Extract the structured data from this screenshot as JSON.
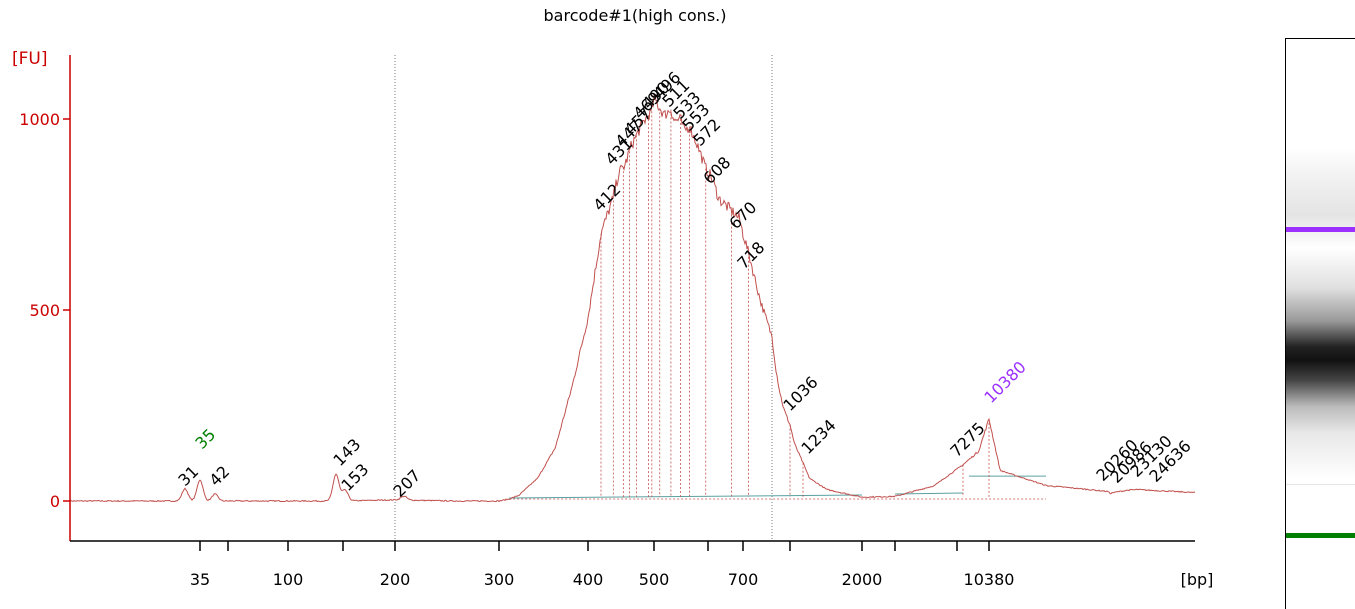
{
  "chart_data": {
    "type": "line",
    "title": "barcode#1(high cons.)",
    "ylabel": "[FU]",
    "xlabel": "[bp]",
    "ylim": [
      -110,
      1160
    ],
    "y_ticks": [
      0,
      500,
      1000
    ],
    "x_tick_labels": [
      "35",
      "100",
      "200",
      "300",
      "400",
      "500",
      "700",
      "2000",
      "10380"
    ],
    "series": [
      {
        "x": [
          35,
          100,
          150,
          200,
          250,
          300,
          310,
          320,
          340,
          360,
          380,
          400,
          412,
          430,
          440,
          450,
          460,
          470,
          480,
          490,
          496,
          500,
          510,
          520,
          533,
          540,
          553,
          560,
          572,
          590,
          608,
          620,
          640,
          660,
          670,
          690,
          700,
          718,
          740,
          760,
          800,
          850,
          900,
          950,
          1000,
          1036,
          1100,
          1234,
          1300,
          1500,
          2000,
          3000,
          5000,
          7275,
          9000,
          10380,
          11000,
          14000,
          17000,
          20000,
          20260,
          21000,
          22000,
          23130,
          24636,
          28000
        ],
        "y": [
          0,
          0,
          0,
          3,
          0,
          0,
          5,
          15,
          60,
          140,
          300,
          480,
          700,
          790,
          860,
          880,
          930,
          960,
          990,
          1010,
          1020,
          1055,
          1030,
          1010,
          1025,
          995,
          1000,
          970,
          980,
          930,
          870,
          850,
          790,
          770,
          760,
          740,
          700,
          650,
          580,
          520,
          430,
          340,
          280,
          240,
          215,
          200,
          150,
          100,
          60,
          30,
          10,
          12,
          40,
          95,
          130,
          215,
          80,
          40,
          32,
          25,
          20,
          24,
          28,
          30,
          28,
          22
        ]
      }
    ],
    "peaks": [
      "31",
      "35",
      "42",
      "143",
      "153",
      "207",
      "412",
      "431",
      "447",
      "457",
      "469",
      "490",
      "496",
      "511",
      "533",
      "553",
      "572",
      "608",
      "670",
      "718",
      "1036",
      "1234",
      "7275",
      "10380",
      "20260",
      "20986",
      "23130",
      "24636"
    ],
    "marker_lower": "35",
    "marker_upper": "10380",
    "colors": {
      "trace": "#c0504d",
      "axis": "#cc0000",
      "lower_marker": "#008000",
      "upper_marker": "#9b30ff",
      "baseline": "#5aa0a0"
    }
  }
}
